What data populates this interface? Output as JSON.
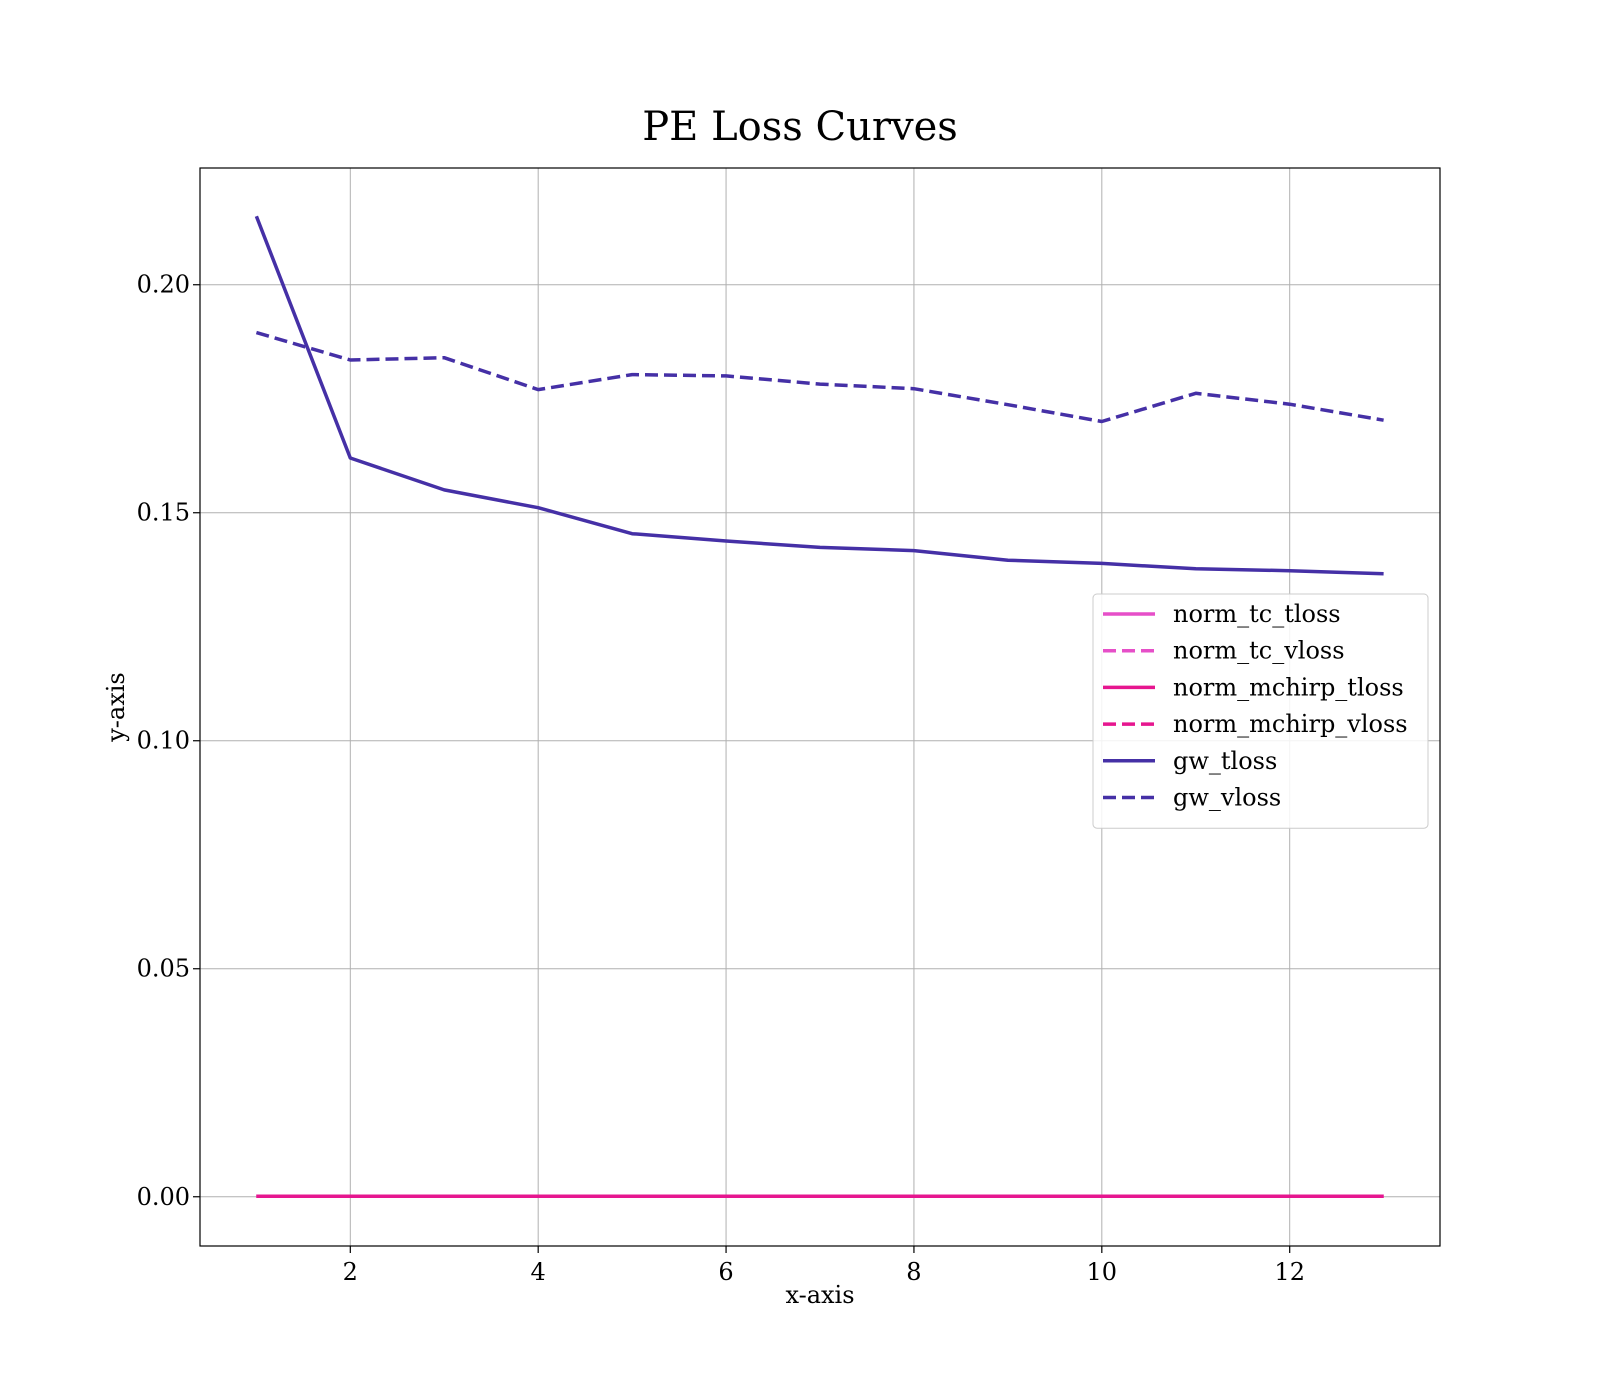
{
  "chart_data": {
    "type": "line",
    "title": "PE Loss Curves",
    "xlabel": "x-axis",
    "ylabel": "y-axis",
    "xlim": [
      0.4,
      13.6
    ],
    "ylim": [
      -0.0108,
      0.2256
    ],
    "xticks": [
      2,
      4,
      6,
      8,
      10,
      12
    ],
    "xtick_labels": [
      "2",
      "4",
      "6",
      "8",
      "10",
      "12"
    ],
    "yticks": [
      0.0,
      0.05,
      0.1,
      0.15,
      0.2
    ],
    "ytick_labels": [
      "0.00",
      "0.05",
      "0.10",
      "0.15",
      "0.20"
    ],
    "grid": true,
    "legend_position": "center-right",
    "x": [
      1,
      2,
      3,
      4,
      5,
      6,
      7,
      8,
      9,
      10,
      11,
      12,
      13
    ],
    "series": [
      {
        "name": "norm_tc_tloss",
        "color": "#e64fc8",
        "dash": "solid",
        "values": [
          0.0001,
          0.0001,
          0.0001,
          0.0001,
          0.0001,
          0.0001,
          0.0001,
          0.0001,
          0.0001,
          0.0001,
          0.0001,
          0.0001,
          0.0001
        ]
      },
      {
        "name": "norm_tc_vloss",
        "color": "#e64fc8",
        "dash": "dashed",
        "values": [
          0.0001,
          0.0001,
          0.0001,
          0.0001,
          0.0001,
          0.0001,
          0.0001,
          0.0001,
          0.0001,
          0.0001,
          0.0001,
          0.0001,
          0.0001
        ]
      },
      {
        "name": "norm_mchirp_tloss",
        "color": "#e6168f",
        "dash": "solid",
        "values": [
          0.0001,
          0.0001,
          0.0001,
          0.0001,
          0.0001,
          0.0001,
          0.0001,
          0.0001,
          0.0001,
          0.0001,
          0.0001,
          0.0001,
          0.0001
        ]
      },
      {
        "name": "norm_mchirp_vloss",
        "color": "#e6168f",
        "dash": "dashed",
        "values": [
          0.0001,
          0.0001,
          0.0001,
          0.0001,
          0.0001,
          0.0001,
          0.0001,
          0.0001,
          0.0001,
          0.0001,
          0.0001,
          0.0001,
          0.0001
        ]
      },
      {
        "name": "gw_tloss",
        "color": "#4530a6",
        "dash": "solid",
        "values": [
          0.215,
          0.162,
          0.155,
          0.1511,
          0.1454,
          0.1438,
          0.1424,
          0.1417,
          0.1396,
          0.1389,
          0.1377,
          0.1373,
          0.1366
        ]
      },
      {
        "name": "gw_vloss",
        "color": "#4530a6",
        "dash": "dashed",
        "values": [
          0.1895,
          0.1835,
          0.184,
          0.177,
          0.1803,
          0.18,
          0.1782,
          0.1772,
          0.1737,
          0.17,
          0.1762,
          0.1738,
          0.1703
        ]
      }
    ]
  }
}
